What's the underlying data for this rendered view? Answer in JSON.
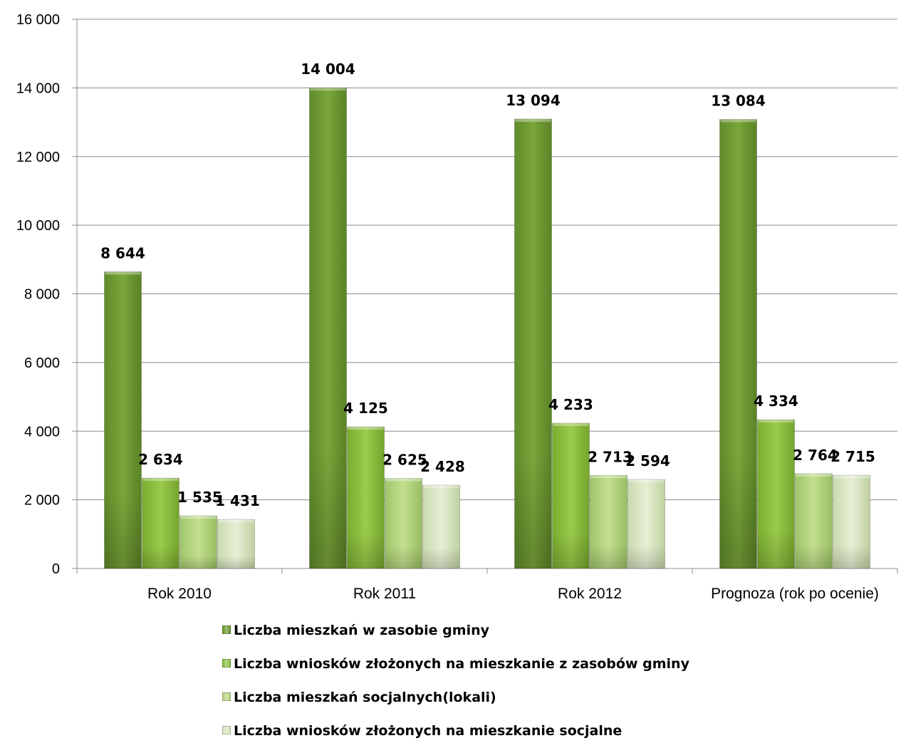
{
  "chart_data": {
    "type": "bar",
    "title": "",
    "xlabel": "",
    "ylabel": "",
    "categories": [
      "Rok 2010",
      "Rok 2011",
      "Rok 2012",
      "Prognoza (rok po ocenie)"
    ],
    "ylim": [
      0,
      16000
    ],
    "yticks": [
      0,
      2000,
      4000,
      6000,
      8000,
      10000,
      12000,
      14000,
      16000
    ],
    "ytick_labels": [
      "0",
      "2 000",
      "4 000",
      "6 000",
      "8 000",
      "10 000",
      "12 000",
      "14 000",
      "16 000"
    ],
    "grid": true,
    "legend_position": "bottom",
    "series": [
      {
        "name": "Liczba mieszkań w zasobie gminy",
        "values": [
          8644,
          14004,
          13094,
          13084
        ],
        "labels": [
          "8 644",
          "14 004",
          "13 094",
          "13 084"
        ],
        "color": "#6f9a32"
      },
      {
        "name": "Liczba wniosków złożonych na mieszkanie z zasobów gminy",
        "values": [
          2634,
          4125,
          4233,
          4334
        ],
        "labels": [
          "2 634",
          "4 125",
          "4 233",
          "4 334"
        ],
        "color": "#8cbf3f"
      },
      {
        "name": "Liczba mieszkań socjalnych(lokali)",
        "values": [
          1535,
          2625,
          2713,
          2764
        ],
        "labels": [
          "1 535",
          "2 625",
          "2 713",
          "2 764"
        ],
        "color": "#b6d57e"
      },
      {
        "name": "Liczba wniosków złożonych na mieszkanie socjalne",
        "values": [
          1431,
          2428,
          2594,
          2715
        ],
        "labels": [
          "1 431",
          "2 428",
          "2 594",
          "2 715"
        ],
        "color": "#d9e6bf"
      }
    ]
  }
}
